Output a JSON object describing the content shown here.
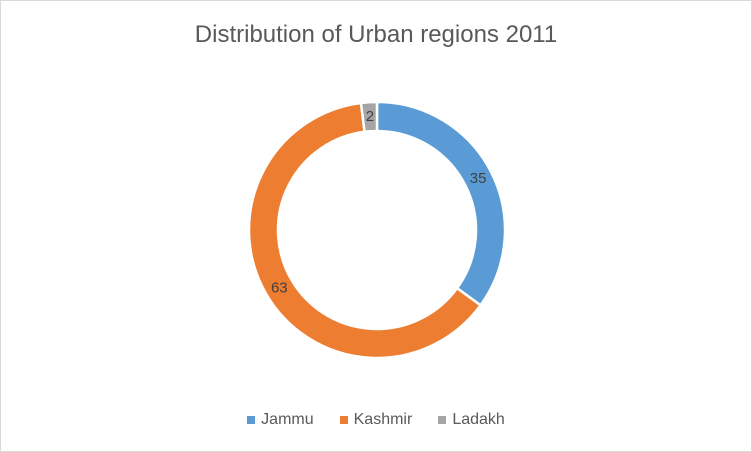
{
  "chart_data": {
    "type": "pie",
    "variant": "doughnut",
    "title": "Distribution of Urban regions 2011",
    "categories": [
      "Jammu",
      "Kashmir",
      "Ladakh"
    ],
    "values": [
      35,
      63,
      2
    ],
    "colors": [
      "#5b9bd5",
      "#ed7d31",
      "#a5a5a5"
    ],
    "data_labels": [
      "35",
      "63",
      "2"
    ],
    "legend_position": "bottom"
  }
}
